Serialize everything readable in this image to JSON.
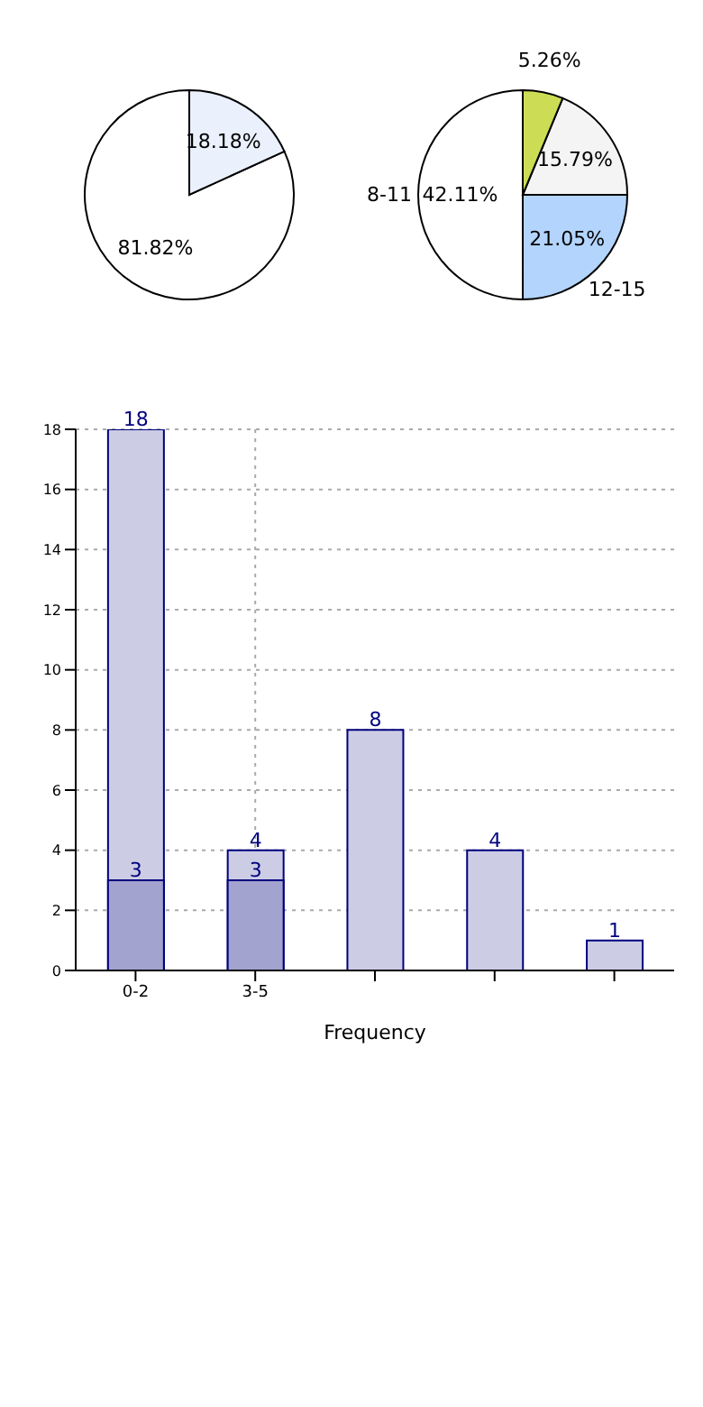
{
  "chart_data": [
    {
      "type": "pie",
      "categories": [
        null,
        null
      ],
      "values": [
        81.82,
        18.18
      ],
      "colors": [
        "#ffffff",
        "#eaf0fc"
      ],
      "value_labels": [
        "81.82%",
        "18.18%"
      ]
    },
    {
      "type": "pie",
      "categories": [
        "8-11",
        "12-15",
        null,
        null
      ],
      "values": [
        42.11,
        21.05,
        15.79,
        5.26
      ],
      "colors": [
        "#ffffff",
        "#b3d4fc",
        "#f4f4f4",
        "#ccdd55"
      ],
      "value_labels": [
        "42.11%",
        "21.05%",
        "15.79%",
        "5.26%"
      ]
    },
    {
      "type": "bar",
      "xlabel": "Frequency",
      "categories": [
        "0-2",
        "3-5",
        null,
        null,
        null
      ],
      "series": [
        {
          "color": "#cccce4",
          "values": [
            18,
            4,
            8,
            4,
            1
          ]
        },
        {
          "color": "#a3a3cf",
          "values": [
            3,
            3,
            null,
            null,
            null
          ]
        }
      ],
      "ylim": [
        0,
        18
      ],
      "yticks": [
        0,
        2,
        4,
        6,
        8,
        10,
        12,
        14,
        16,
        18
      ],
      "grid": true,
      "data_labels": true,
      "legend": false
    }
  ]
}
